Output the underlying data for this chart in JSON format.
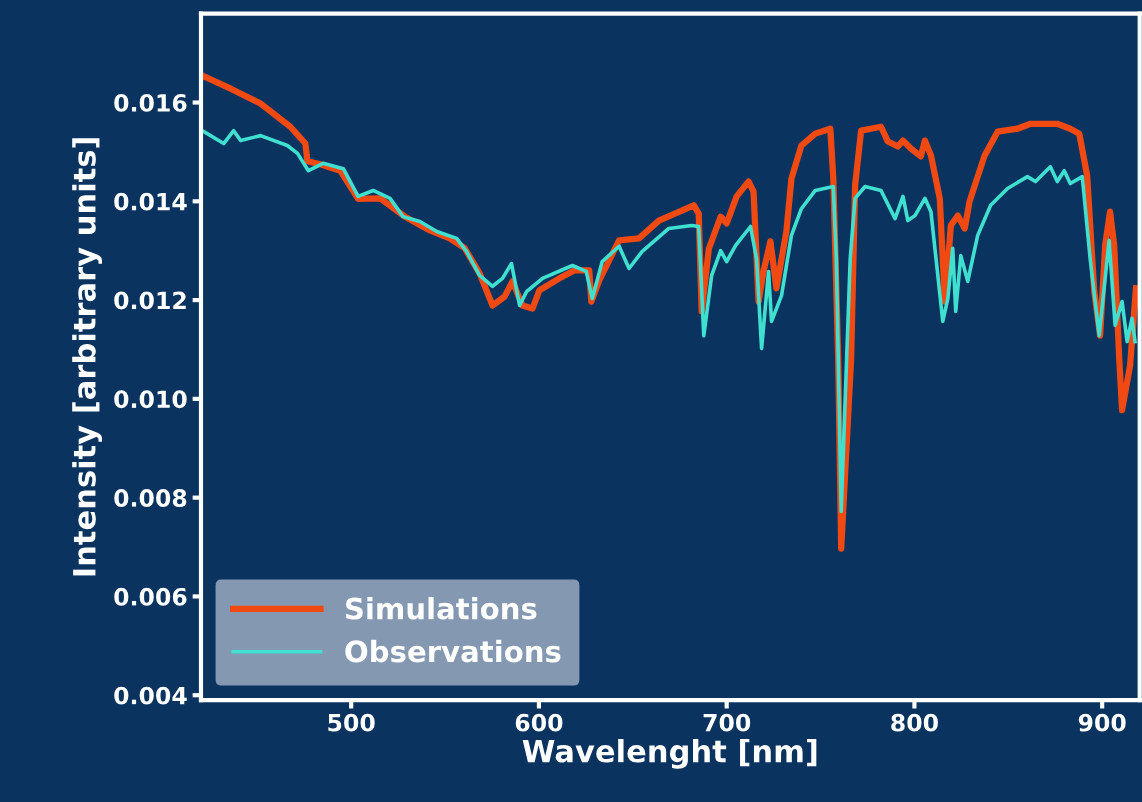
{
  "chart_data": {
    "type": "line",
    "xlabel": "Wavelenght [nm]",
    "ylabel": "Intensity [arbitrary units]",
    "xlim": [
      420,
      920
    ],
    "xticks": [
      500,
      600,
      700,
      800,
      900
    ],
    "ylim": [
      0.0039,
      0.0178
    ],
    "yticks": [
      {
        "value": 0.004,
        "label": "0.004"
      },
      {
        "value": 0.006,
        "label": "0.006"
      },
      {
        "value": 0.008,
        "label": "0.008"
      },
      {
        "value": 0.01,
        "label": "0.010"
      },
      {
        "value": 0.012,
        "label": "0.012"
      },
      {
        "value": 0.014,
        "label": "0.014"
      },
      {
        "value": 0.016,
        "label": "0.016"
      }
    ],
    "grid": false,
    "legend": "bottom left",
    "marker": "none",
    "line_style": "solid",
    "series": [
      {
        "name": "Simulations",
        "color": "#f04a12",
        "x": [
          420.4,
          435.8,
          451.7,
          467.6,
          475.6,
          476.7,
          483.6,
          494.2,
          503.7,
          515.4,
          528.6,
          541.9,
          552.5,
          560.5,
          568.4,
          575.3,
          581.7,
          585.9,
          591.2,
          596.6,
          600.3,
          610.9,
          618.8,
          626.8,
          627.9,
          632.1,
          642.7,
          653.3,
          663.9,
          682.5,
          685.1,
          686.7,
          690.5,
          696.8,
          700.0,
          705.3,
          711.7,
          714.3,
          717.0,
          719.6,
          723.3,
          726.5,
          731.8,
          734.5,
          739.8,
          747.2,
          755.2,
          756.8,
          759.4,
          761.0,
          766.3,
          768.4,
          771.6,
          782.2,
          785.9,
          791.2,
          793.9,
          798.1,
          803.4,
          805.6,
          808.8,
          813.5,
          816.2,
          819.4,
          823.1,
          826.8,
          829.4,
          837.4,
          844.3,
          854.9,
          861.8,
          876.1,
          883.0,
          887.8,
          892.0,
          895.8,
          898.9,
          901.6,
          904.2,
          906.4,
          909.0,
          910.6,
          914.9,
          918.0
        ],
        "values": [
          0.01655,
          0.01628,
          0.01598,
          0.01551,
          0.01517,
          0.01481,
          0.01475,
          0.01462,
          0.01405,
          0.01406,
          0.01369,
          0.01341,
          0.01325,
          0.01305,
          0.01254,
          0.01189,
          0.01207,
          0.01238,
          0.01189,
          0.01183,
          0.0122,
          0.01244,
          0.0126,
          0.0126,
          0.01197,
          0.0124,
          0.01321,
          0.01325,
          0.01361,
          0.01392,
          0.01375,
          0.01177,
          0.01304,
          0.01369,
          0.01355,
          0.0141,
          0.0144,
          0.0142,
          0.01197,
          0.01258,
          0.01319,
          0.01224,
          0.01339,
          0.01446,
          0.01513,
          0.01537,
          0.01547,
          0.01446,
          0.01082,
          0.00697,
          0.01082,
          0.01432,
          0.01543,
          0.01551,
          0.01521,
          0.01511,
          0.01523,
          0.01507,
          0.01491,
          0.01523,
          0.01493,
          0.01406,
          0.01197,
          0.01351,
          0.01371,
          0.01345,
          0.014,
          0.01493,
          0.01541,
          0.01547,
          0.01557,
          0.01557,
          0.01547,
          0.01537,
          0.01452,
          0.01217,
          0.01128,
          0.01311,
          0.01379,
          0.01311,
          0.01088,
          0.00977,
          0.01068,
          0.01224
        ]
      },
      {
        "name": "Observations",
        "color": "#40e0d0",
        "x": [
          421.5,
          432.1,
          437.4,
          441.1,
          451.7,
          466.0,
          471.4,
          477.2,
          485.1,
          495.8,
          503.7,
          511.7,
          520.7,
          527.6,
          536.6,
          545.6,
          556.2,
          561.5,
          568.4,
          575.3,
          580.6,
          585.4,
          589.7,
          593.4,
          601.9,
          617.8,
          625.2,
          628.4,
          633.7,
          642.7,
          648.0,
          654.9,
          669.2,
          681.4,
          685.1,
          687.8,
          692.0,
          696.8,
          700.0,
          704.8,
          712.7,
          715.9,
          718.6,
          722.3,
          723.9,
          729.2,
          734.5,
          739.8,
          747.2,
          756.8,
          758.4,
          761.0,
          765.8,
          768.4,
          773.7,
          782.2,
          789.7,
          793.9,
          796.5,
          800.3,
          805.6,
          808.8,
          815.1,
          817.8,
          820.4,
          822.0,
          824.7,
          828.4,
          833.7,
          840.6,
          849.6,
          860.2,
          864.5,
          872.4,
          876.1,
          879.8,
          883.0,
          889.4,
          893.6,
          898.4,
          903.7,
          906.9,
          910.6,
          913.3,
          915.9,
          917.5
        ],
        "values": [
          0.01541,
          0.01517,
          0.01543,
          0.01523,
          0.01533,
          0.01513,
          0.01497,
          0.01462,
          0.01477,
          0.01466,
          0.0141,
          0.01422,
          0.01406,
          0.01369,
          0.01359,
          0.01339,
          0.01325,
          0.01298,
          0.0125,
          0.01228,
          0.01244,
          0.01274,
          0.01189,
          0.01217,
          0.01244,
          0.0127,
          0.01258,
          0.01203,
          0.01278,
          0.01309,
          0.01264,
          0.01298,
          0.01345,
          0.01351,
          0.01349,
          0.01128,
          0.0125,
          0.013,
          0.01278,
          0.01311,
          0.01349,
          0.01284,
          0.01102,
          0.01258,
          0.01157,
          0.01209,
          0.01331,
          0.01385,
          0.01422,
          0.0143,
          0.01284,
          0.00772,
          0.01284,
          0.01406,
          0.0143,
          0.01422,
          0.01365,
          0.0141,
          0.01361,
          0.01371,
          0.01406,
          0.01379,
          0.01157,
          0.01203,
          0.01305,
          0.01177,
          0.0129,
          0.01238,
          0.01331,
          0.01392,
          0.01426,
          0.0145,
          0.0144,
          0.0147,
          0.0144,
          0.01462,
          0.01436,
          0.0145,
          0.01284,
          0.01128,
          0.01321,
          0.01149,
          0.01197,
          0.01116,
          0.01163,
          0.01116
        ]
      }
    ]
  }
}
